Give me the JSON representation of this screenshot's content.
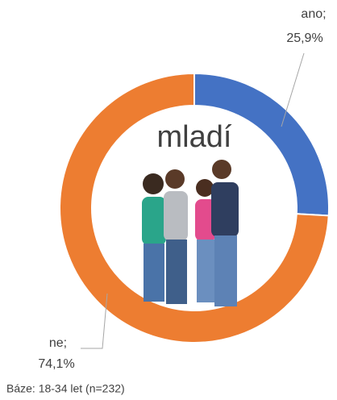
{
  "chart_data": {
    "type": "donut",
    "title": "mladí",
    "categories": [
      "ano;",
      "ne;"
    ],
    "values": [
      25.9,
      74.1
    ],
    "value_labels": [
      "25,9%",
      "74,1%"
    ],
    "colors": [
      "#4472c4",
      "#ed7d31"
    ],
    "footnote": "Báze: 18-34 let (n=232)"
  }
}
